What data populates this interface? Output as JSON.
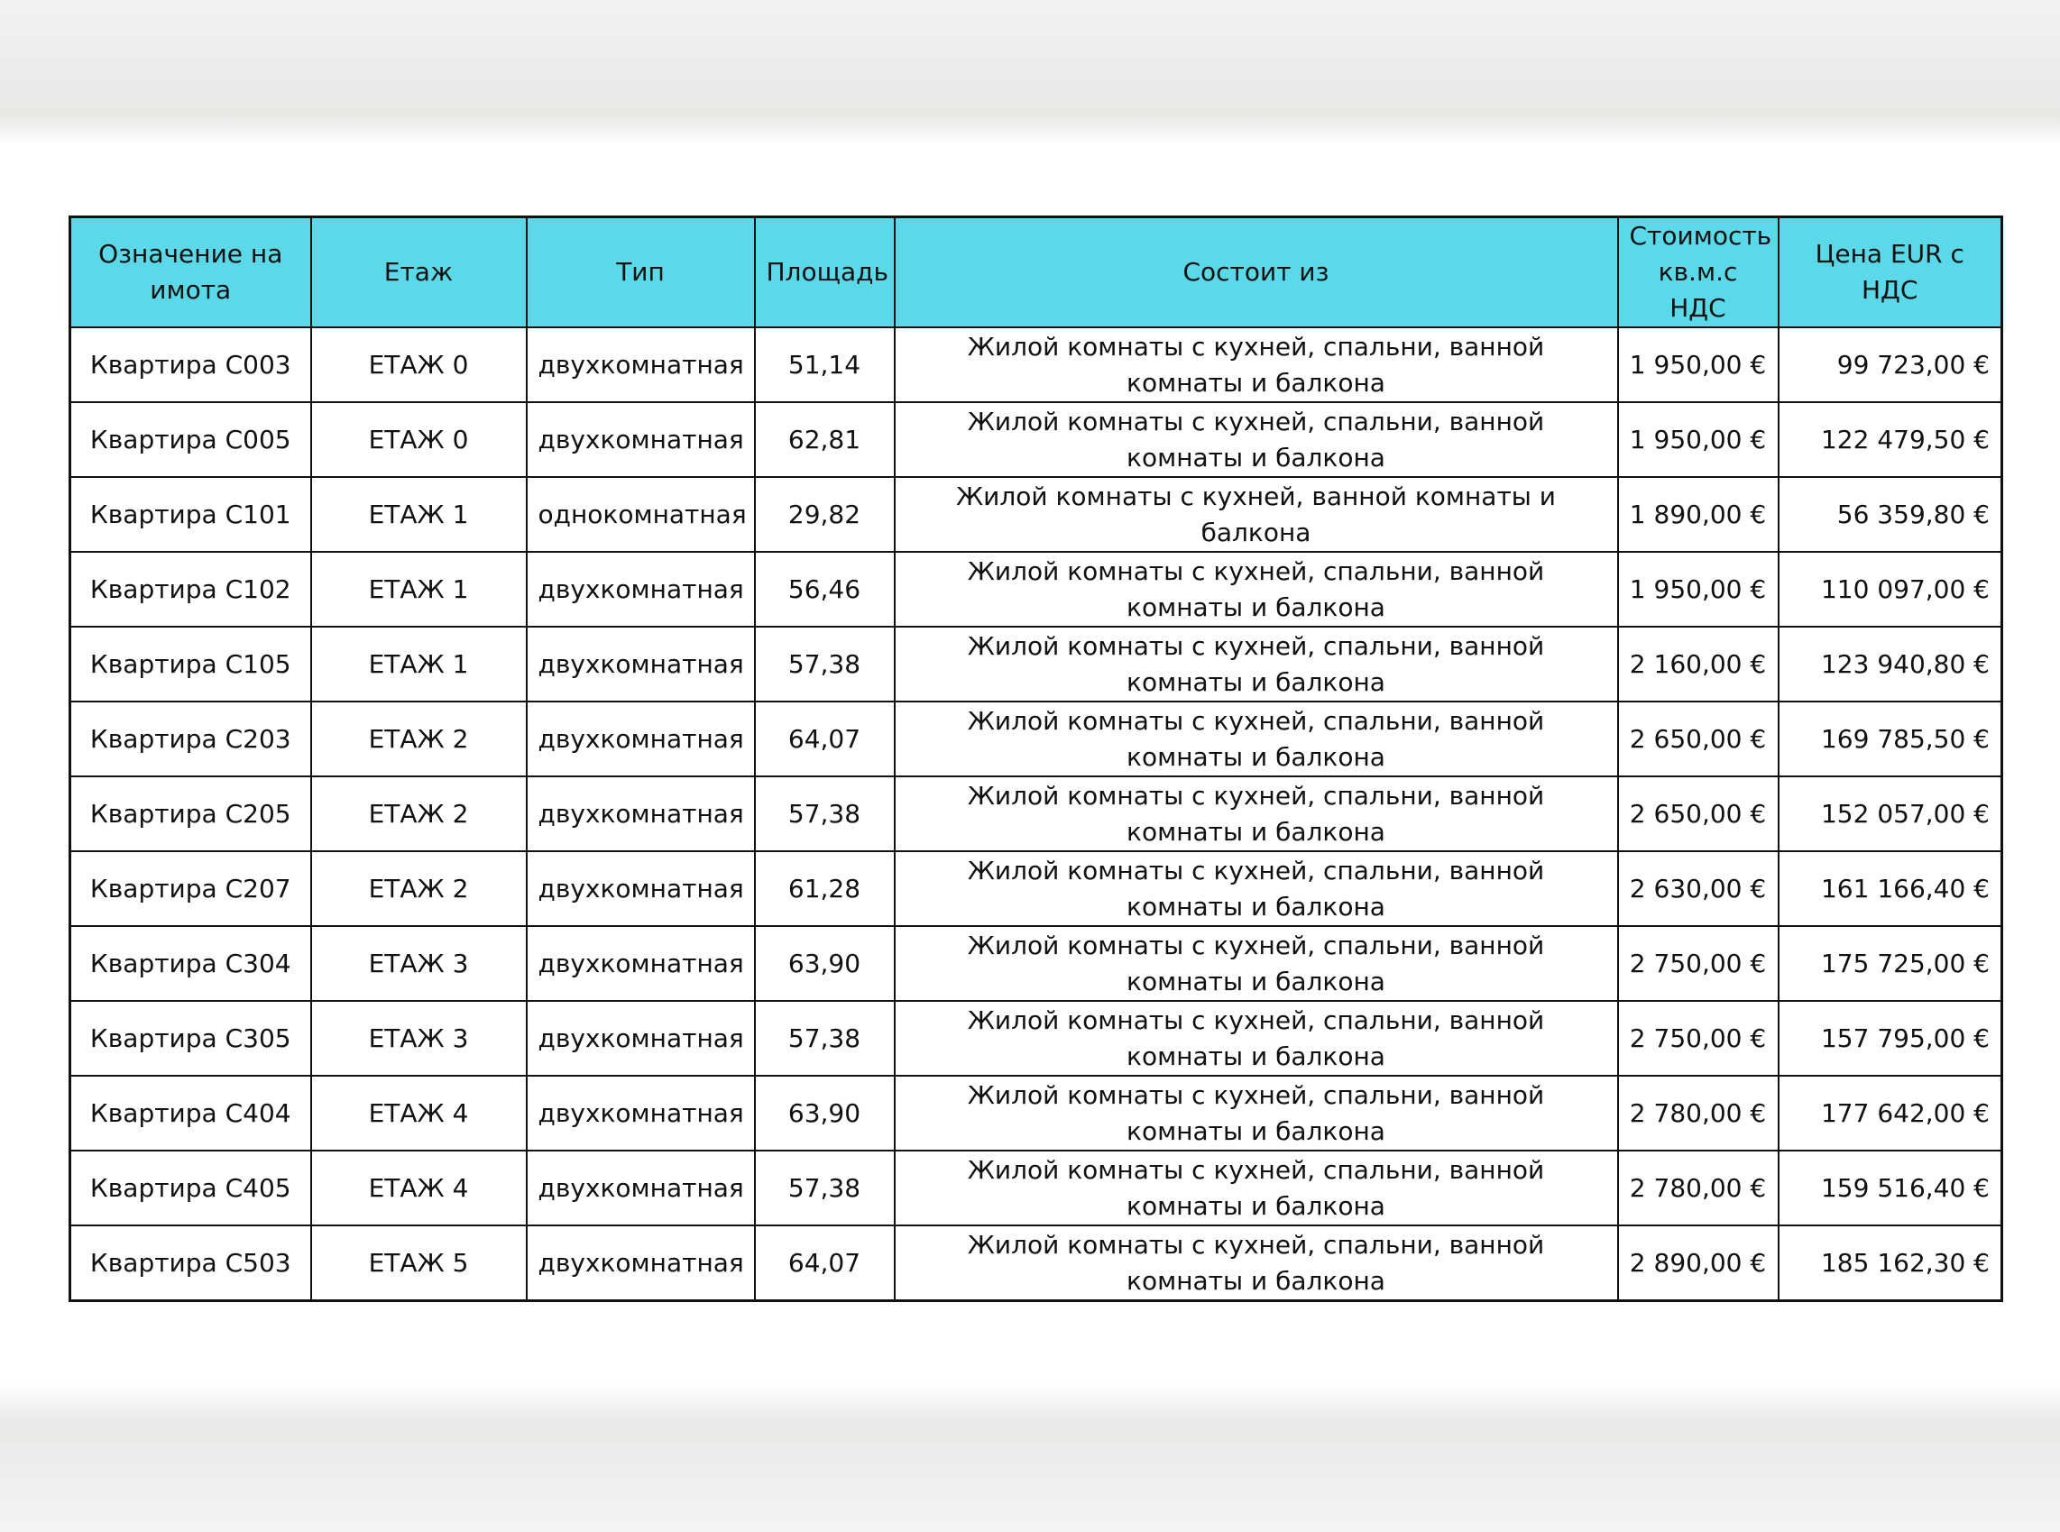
{
  "table": {
    "header": [
      "Означение на имота",
      "Етаж",
      "Тип",
      "Площадь",
      "Состоит из",
      "Стоимость кв.м.с НДС",
      "Цена EUR с НДС"
    ],
    "rows": [
      [
        "Квартира С003",
        "ЕТАЖ 0",
        "двухкомнатная",
        "51,14",
        "Жилой комнаты с кухней, спальни, ванной комнаты и балкона",
        "1 950,00 €",
        "99 723,00 €"
      ],
      [
        "Квартира С005",
        "ЕТАЖ 0",
        "двухкомнатная",
        "62,81",
        "Жилой комнаты с кухней, спальни, ванной комнаты и балкона",
        "1 950,00 €",
        "122 479,50 €"
      ],
      [
        "Квартира С101",
        "ЕТАЖ 1",
        "однокомнатная",
        "29,82",
        "Жилой комнаты с кухней, ванной комнаты и балкона",
        "1 890,00 €",
        "56 359,80 €"
      ],
      [
        "Квартира С102",
        "ЕТАЖ 1",
        "двухкомнатная",
        "56,46",
        "Жилой комнаты с кухней, спальни, ванной комнаты и балкона",
        "1 950,00 €",
        "110 097,00 €"
      ],
      [
        "Квартира С105",
        "ЕТАЖ 1",
        "двухкомнатная",
        "57,38",
        "Жилой комнаты с кухней, спальни, ванной комнаты и балкона",
        "2 160,00 €",
        "123 940,80 €"
      ],
      [
        "Квартира С203",
        "ЕТАЖ 2",
        "двухкомнатная",
        "64,07",
        "Жилой комнаты с кухней, спальни, ванной комнаты и балкона",
        "2 650,00 €",
        "169 785,50 €"
      ],
      [
        "Квартира С205",
        "ЕТАЖ 2",
        "двухкомнатная",
        "57,38",
        "Жилой комнаты с кухней, спальни, ванной комнаты и балкона",
        "2 650,00 €",
        "152 057,00 €"
      ],
      [
        "Квартира С207",
        "ЕТАЖ 2",
        "двухкомнатная",
        "61,28",
        "Жилой комнаты с кухней, спальни, ванной комнаты и балкона",
        "2 630,00 €",
        "161 166,40 €"
      ],
      [
        "Квартира С304",
        "ЕТАЖ 3",
        "двухкомнатная",
        "63,90",
        "Жилой комнаты с кухней, спальни, ванной комнаты и балкона",
        "2 750,00 €",
        "175 725,00 €"
      ],
      [
        "Квартира С305",
        "ЕТАЖ 3",
        "двухкомнатная",
        "57,38",
        "Жилой комнаты с кухней, спальни, ванной комнаты и балкона",
        "2 750,00 €",
        "157 795,00 €"
      ],
      [
        "Квартира С404",
        "ЕТАЖ 4",
        "двухкомнатная",
        "63,90",
        "Жилой комнаты с кухней, спальни, ванной комнаты и балкона",
        "2 780,00 €",
        "177 642,00 €"
      ],
      [
        "Квартира С405",
        "ЕТАЖ 4",
        "двухкомнатная",
        "57,38",
        "Жилой комнаты с кухней, спальни, ванной комнаты и балкона",
        "2 780,00 €",
        "159 516,40 €"
      ],
      [
        "Квартира С503",
        "ЕТАЖ 5",
        "двухкомнатная",
        "64,07",
        "Жилой комнаты с кухней, спальни, ванной комнаты и балкона",
        "2 890,00 €",
        "185 162,30 €"
      ]
    ]
  }
}
